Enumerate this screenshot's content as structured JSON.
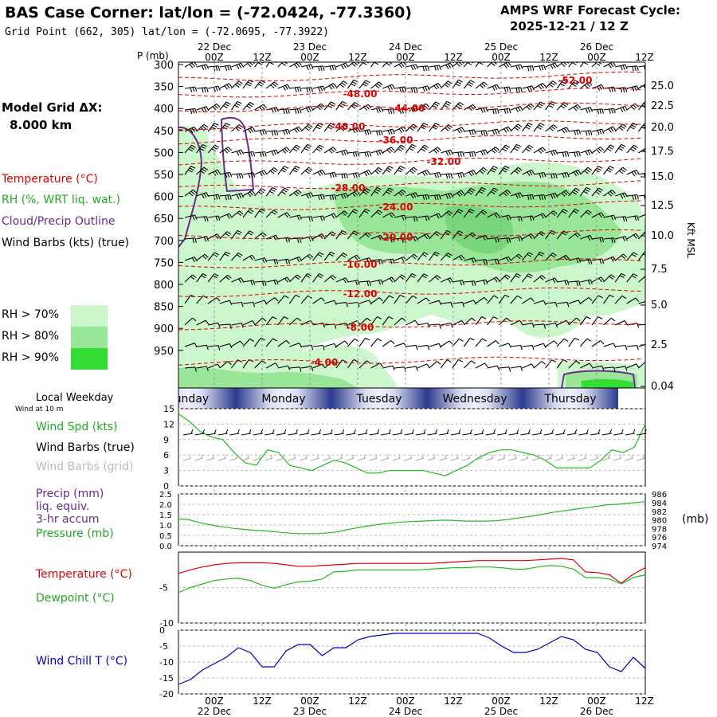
{
  "header": {
    "title": "BAS Case Corner:  lat/lon = (-72.0424, -77.3360)",
    "grid_point": "Grid Point (662, 305) lat/lon = (-72.0695, -77.3922)",
    "cycle_label": "AMPS WRF Forecast Cycle:",
    "cycle_value": "2025-12-21 / 12  Z"
  },
  "left_panel": {
    "model_grid_label": "Model Grid ΔX:",
    "model_grid_value": "8.000 km",
    "legend_temperature": "Temperature (°C)",
    "legend_rh": "RH (%, WRT liq. wat.)",
    "legend_cloud": "Cloud/Precip Outline",
    "legend_wind": "Wind Barbs (kts) (true)",
    "rh_thresholds": [
      {
        "label": "RH > 70%",
        "color": "#ccf7cc"
      },
      {
        "label": "RH > 80%",
        "color": "#99e699"
      },
      {
        "label": "RH > 90%",
        "color": "#33dd33"
      }
    ]
  },
  "colors": {
    "temperature": "#dd0000",
    "rh_text": "#22aa22",
    "cloud": "#6a2c8a",
    "wind_grid": "#aaaaaa",
    "wind_chill": "#0000bb",
    "speed_line": "#22bb22",
    "weekday_bar": "#3a4a9a"
  },
  "chart_data": [
    {
      "type": "heatmap",
      "name": "time-height cross section",
      "y_axis_label": "P (mb)",
      "y_ticks": [
        "300",
        "350",
        "400",
        "450",
        "500",
        "550",
        "600",
        "650",
        "700",
        "750",
        "800",
        "850",
        "900",
        "950"
      ],
      "right_axis_label": "Kft MSL",
      "right_ticks": [
        "25.0",
        "22.5",
        "20.0",
        "17.5",
        "15.0",
        "12.5",
        "10.0",
        "7.5",
        "5.0",
        "2.5",
        "0.04"
      ],
      "top_time_ticks": [
        "00Z",
        "12Z",
        "00Z",
        "12Z",
        "00Z",
        "12Z",
        "00Z",
        "12Z",
        "00Z",
        "12Z"
      ],
      "date_labels": [
        "22 Dec",
        "23 Dec",
        "24 Dec",
        "25 Dec",
        "26 Dec"
      ],
      "isotherm_labels": [
        "-52.00",
        "-48.00",
        "-44.00",
        "-40.00",
        "-36.00",
        "-32.00",
        "-28.00",
        "-24.00",
        "-20.00",
        "-16.00",
        "-12.00",
        "-8.00",
        "-4.00"
      ],
      "isotherm_values": [
        -52,
        -48,
        -44,
        -40,
        -36,
        -32,
        -28,
        -24,
        -20,
        -16,
        -12,
        -8,
        -4
      ]
    },
    {
      "type": "line",
      "name": "weekday strip",
      "title": "Local Weekday",
      "subtitle": "Wind at 10 m",
      "days": [
        "Sunday",
        "Monday",
        "Tuesday",
        "Wednesday",
        "Thursday"
      ]
    },
    {
      "type": "line",
      "name": "wind speed",
      "labels": {
        "speed": "Wind Spd (kts)",
        "barbs_true": "Wind Barbs (true)",
        "barbs_grid": "Wind Barbs (grid)"
      },
      "y_ticks": [
        "0",
        "3",
        "6",
        "9",
        "12",
        "15"
      ],
      "ylim": [
        0,
        15
      ],
      "x_hours": [
        0,
        3,
        6,
        9,
        12,
        15,
        18,
        21,
        24,
        27,
        30,
        33,
        36,
        39,
        42,
        45,
        48,
        51,
        54,
        57,
        60,
        63,
        66,
        69,
        72,
        75,
        78,
        81,
        84,
        87,
        90,
        93,
        96,
        99,
        102,
        105,
        108,
        111,
        114,
        117,
        120,
        123,
        126
      ],
      "values": [
        14,
        12.5,
        10.5,
        9.5,
        9,
        6.5,
        4.5,
        4,
        7,
        6.5,
        4,
        3.5,
        3,
        4,
        5,
        4.5,
        3.5,
        2.5,
        2.5,
        3,
        3,
        3,
        3,
        2.5,
        2,
        3,
        4,
        5.5,
        6.5,
        7,
        7,
        6.5,
        6,
        5,
        3.5,
        3.5,
        3.5,
        3.5,
        5,
        7,
        6.5,
        7.5,
        12
      ]
    },
    {
      "type": "line",
      "name": "precip and pressure",
      "labels": {
        "precip": "Precip (mm)",
        "liq": "liq. equiv.",
        "accum": "3-hr accum",
        "pressure": "Pressure (mb)",
        "unit": "(mb)"
      },
      "left_ticks": [
        "0.0",
        "0.5",
        "1.0",
        "1.5",
        "2.0",
        "2.5"
      ],
      "right_ticks": [
        "974",
        "976",
        "978",
        "980",
        "982",
        "984",
        "986"
      ],
      "ylim_pressure": [
        974,
        986
      ],
      "values": [
        980.2,
        980.1,
        979.5,
        979.0,
        978.6,
        978.3,
        978.0,
        977.8,
        977.6,
        977.5,
        977.3,
        977.1,
        976.9,
        976.8,
        976.8,
        976.8,
        977.0,
        977.2,
        977.7,
        978.1,
        978.5,
        978.8,
        979.1,
        979.3,
        979.5,
        979.6,
        979.7,
        979.8,
        979.9,
        979.9,
        979.8,
        979.7,
        979.7,
        979.7,
        979.8,
        980.0,
        980.3,
        980.6,
        980.9,
        981.3,
        981.7,
        982.0,
        982.3,
        982.6,
        982.9,
        983.2,
        983.5,
        983.6,
        983.8,
        984.0,
        984.2
      ]
    },
    {
      "type": "line",
      "name": "temperature and dewpoint",
      "labels": {
        "temperature": "Temperature (°C)",
        "dewpoint": "Dewpoint (°C)"
      },
      "y_ticks": [
        "-5",
        "-10"
      ],
      "ylim": [
        -10,
        0
      ],
      "temperature": [
        -3.0,
        -2.5,
        -2.1,
        -1.8,
        -1.6,
        -1.5,
        -1.5,
        -1.5,
        -1.6,
        -1.8,
        -2.0,
        -2.0,
        -1.9,
        -1.8,
        -1.7,
        -1.6,
        -1.6,
        -1.6,
        -1.6,
        -1.6,
        -1.6,
        -1.6,
        -1.5,
        -1.4,
        -1.3,
        -1.2,
        -1.2,
        -1.2,
        -1.2,
        -1.2,
        -1.1,
        -1.0,
        -0.9,
        -1.1,
        -2.8,
        -2.9,
        -3.2,
        -4.4,
        -3.1,
        -2.2
      ],
      "dewpoint": [
        -5.7,
        -5.0,
        -4.5,
        -4.0,
        -3.8,
        -3.7,
        -4.0,
        -4.7,
        -5.1,
        -4.6,
        -4.2,
        -4.1,
        -3.8,
        -2.8,
        -2.7,
        -2.5,
        -2.5,
        -2.5,
        -2.5,
        -2.5,
        -2.5,
        -2.4,
        -2.3,
        -2.2,
        -2.2,
        -2.1,
        -2.1,
        -2.2,
        -2.4,
        -2.4,
        -2.1,
        -1.9,
        -2.0,
        -2.4,
        -3.6,
        -3.6,
        -3.8,
        -4.5,
        -3.6,
        -3.2
      ]
    },
    {
      "type": "line",
      "name": "wind chill",
      "labels": {
        "wind_chill": "Wind Chill T (°C)"
      },
      "y_ticks": [
        "0",
        "-5",
        "-10",
        "-15",
        "-20"
      ],
      "ylim": [
        -20,
        0
      ],
      "values": [
        -17,
        -15.5,
        -12.5,
        -10.5,
        -8.5,
        -5.5,
        -7,
        -11.5,
        -11.5,
        -6.5,
        -4.5,
        -4.5,
        -8,
        -5.5,
        -5.5,
        -3,
        -2,
        -1.5,
        -1,
        -1,
        -1,
        -1,
        -1,
        -1,
        -1,
        -1,
        -2.5,
        -5,
        -7,
        -7,
        -6,
        -4,
        -2,
        -3,
        -6,
        -7,
        -11.5,
        -13,
        -8.5,
        -12
      ],
      "bottom_time_ticks": [
        "00Z",
        "12Z",
        "00Z",
        "12Z",
        "00Z",
        "12Z",
        "00Z",
        "12Z",
        "00Z",
        "12Z"
      ],
      "bottom_date_labels": [
        "22 Dec",
        "23 Dec",
        "24 Dec",
        "25 Dec",
        "26 Dec"
      ]
    }
  ]
}
